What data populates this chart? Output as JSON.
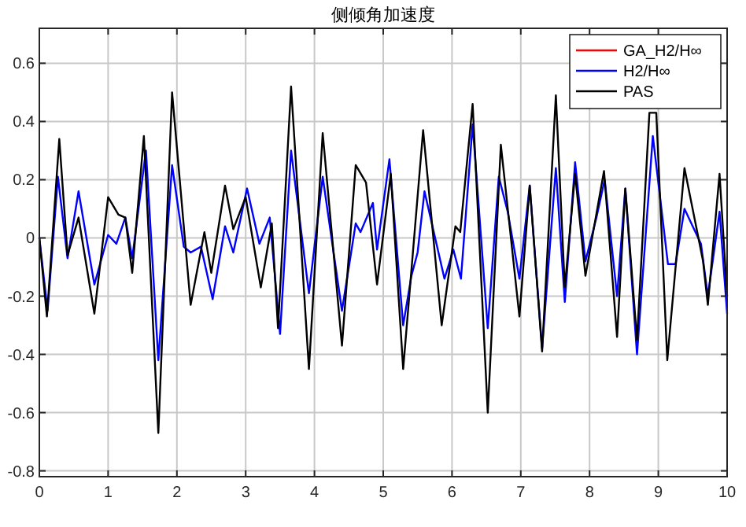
{
  "chart_data": {
    "type": "line",
    "title": "侧倾角加速度",
    "xlim": [
      0,
      10
    ],
    "xticks": [
      0,
      1,
      2,
      3,
      4,
      5,
      6,
      7,
      8,
      9,
      10
    ],
    "ylim": [
      -0.82,
      0.72
    ],
    "yticks": [
      -0.8,
      -0.6,
      -0.4,
      -0.2,
      0,
      0.2,
      0.4,
      0.6
    ],
    "grid": true,
    "legend": "top right",
    "line_style": "solid",
    "series": [
      {
        "name": "GA_H2/H∞",
        "color": "#ff0000"
      },
      {
        "name": "H2/H∞",
        "color": "#0000ff",
        "x": [
          0,
          0.12,
          0.27,
          0.41,
          0.57,
          0.8,
          1.0,
          1.12,
          1.25,
          1.35,
          1.55,
          1.73,
          1.93,
          2.1,
          2.2,
          2.35,
          2.52,
          2.7,
          2.82,
          3.02,
          3.2,
          3.35,
          3.5,
          3.66,
          3.92,
          4.12,
          4.4,
          4.6,
          4.67,
          4.85,
          4.91,
          5.09,
          5.29,
          5.41,
          5.5,
          5.6,
          5.89,
          6.02,
          6.13,
          6.3,
          6.52,
          6.68,
          6.81,
          6.98,
          7.13,
          7.31,
          7.51,
          7.64,
          7.79,
          7.94,
          8.1,
          8.22,
          8.4,
          8.52,
          8.69,
          8.92,
          9.14,
          9.25,
          9.38,
          9.62,
          9.72,
          9.89,
          10
        ],
        "values": [
          0,
          -0.25,
          0.21,
          -0.07,
          0.16,
          -0.16,
          0.01,
          -0.02,
          0.07,
          -0.07,
          0.3,
          -0.42,
          0.25,
          -0.03,
          -0.05,
          -0.03,
          -0.21,
          0.04,
          -0.05,
          0.17,
          -0.02,
          0.07,
          -0.33,
          0.3,
          -0.19,
          0.21,
          -0.25,
          0.05,
          0.02,
          0.12,
          -0.04,
          0.27,
          -0.3,
          -0.13,
          -0.05,
          0.16,
          -0.14,
          -0.04,
          -0.14,
          0.39,
          -0.31,
          0.21,
          0.09,
          -0.14,
          0.18,
          -0.38,
          0.24,
          -0.22,
          0.26,
          -0.08,
          0.07,
          0.2,
          -0.2,
          0.17,
          -0.4,
          0.35,
          -0.09,
          -0.09,
          0.1,
          -0.02,
          -0.2,
          0.09,
          -0.26
        ]
      },
      {
        "name": "PAS",
        "color": "#000000",
        "x": [
          0,
          0.11,
          0.29,
          0.41,
          0.57,
          0.8,
          1.0,
          1.15,
          1.25,
          1.35,
          1.52,
          1.73,
          1.93,
          2.2,
          2.4,
          2.5,
          2.7,
          2.82,
          3.0,
          3.22,
          3.38,
          3.47,
          3.66,
          3.92,
          4.12,
          4.4,
          4.6,
          4.75,
          4.91,
          5.11,
          5.29,
          5.58,
          5.85,
          6.05,
          6.12,
          6.3,
          6.52,
          6.71,
          6.98,
          7.13,
          7.31,
          7.51,
          7.64,
          7.79,
          7.94,
          8.21,
          8.4,
          8.52,
          8.69,
          8.87,
          8.97,
          9.13,
          9.38,
          9.65,
          9.72,
          9.89,
          10
        ],
        "values": [
          0,
          -0.27,
          0.34,
          -0.06,
          0.07,
          -0.26,
          0.14,
          0.08,
          0.07,
          -0.12,
          0.35,
          -0.67,
          0.5,
          -0.23,
          0.02,
          -0.12,
          0.18,
          0.03,
          0.14,
          -0.17,
          0.05,
          -0.31,
          0.52,
          -0.45,
          0.36,
          -0.37,
          0.25,
          0.19,
          -0.16,
          0.22,
          -0.45,
          0.37,
          -0.3,
          0.04,
          0.02,
          0.46,
          -0.6,
          0.32,
          -0.27,
          0.18,
          -0.39,
          0.49,
          -0.17,
          0.22,
          -0.13,
          0.23,
          -0.34,
          0.17,
          -0.35,
          0.43,
          0.43,
          -0.42,
          0.24,
          -0.08,
          -0.23,
          0.22,
          -0.2
        ]
      }
    ]
  }
}
